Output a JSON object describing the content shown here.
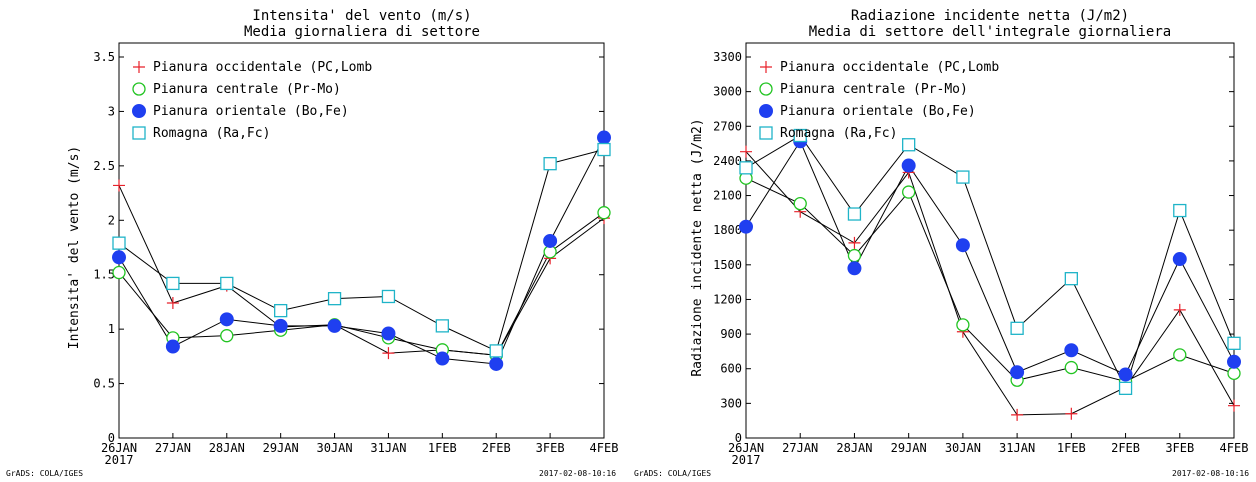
{
  "footer": {
    "left": "GrADS: COLA/IGES",
    "right": "2017-02-08-10:16"
  },
  "chart_data": [
    {
      "type": "line",
      "title": "Intensita' del vento (m/s)",
      "subtitle": "Media giornaliera di settore",
      "ylabel": "Intensita' del vento (m/s)",
      "xlabel": "",
      "categories": [
        "26JAN",
        "27JAN",
        "28JAN",
        "29JAN",
        "30JAN",
        "31JAN",
        "1FEB",
        "2FEB",
        "3FEB",
        "4FEB"
      ],
      "year_label": "2017",
      "ylim": [
        0,
        3.5
      ],
      "yticks": [
        0,
        0.5,
        1,
        1.5,
        2,
        2.5,
        3,
        3.5
      ],
      "ytick_labels": [
        "0",
        "0.5",
        "1",
        "1.5",
        "2",
        "2.5",
        "3",
        "3.5"
      ],
      "grid": false,
      "legend_position": "top-left",
      "series": [
        {
          "name": "Pianura occidentale (PC,Lomb",
          "marker": "plus",
          "color": "#e8212a",
          "values": [
            2.32,
            1.24,
            1.4,
            1.02,
            1.04,
            0.78,
            0.81,
            0.76,
            1.65,
            2.02
          ]
        },
        {
          "name": "Pianura centrale (Pr-Mo)",
          "marker": "circle-open",
          "color": "#22c422",
          "values": [
            1.52,
            0.92,
            0.94,
            0.99,
            1.04,
            0.92,
            0.81,
            0.76,
            1.71,
            2.07
          ]
        },
        {
          "name": "Pianura orientale (Bo,Fe)",
          "marker": "circle-filled",
          "color": "#1f3ff0",
          "values": [
            1.66,
            0.84,
            1.09,
            1.03,
            1.03,
            0.96,
            0.73,
            0.68,
            1.81,
            2.76
          ]
        },
        {
          "name": "Romagna (Ra,Fc)",
          "marker": "square-open",
          "color": "#1fb4c8",
          "values": [
            1.79,
            1.42,
            1.42,
            1.17,
            1.28,
            1.3,
            1.03,
            0.8,
            2.52,
            2.65
          ]
        }
      ]
    },
    {
      "type": "line",
      "title": "Radiazione incidente netta (J/m2)",
      "subtitle": "Media di settore dell'integrale giornaliera",
      "ylabel": "Radiazione incidente netta (J/m2)",
      "xlabel": "",
      "categories": [
        "26JAN",
        "27JAN",
        "28JAN",
        "29JAN",
        "30JAN",
        "31JAN",
        "1FEB",
        "2FEB",
        "3FEB",
        "4FEB"
      ],
      "year_label": "2017",
      "ylim": [
        0,
        3300
      ],
      "yticks": [
        0,
        300,
        600,
        900,
        1200,
        1500,
        1800,
        2100,
        2400,
        2700,
        3000,
        3300
      ],
      "ytick_labels": [
        "0",
        "300",
        "600",
        "900",
        "1200",
        "1500",
        "1800",
        "2100",
        "2400",
        "2700",
        "3000",
        "3300"
      ],
      "grid": false,
      "legend_position": "top-left",
      "series": [
        {
          "name": "Pianura occidentale (PC,Lomb",
          "marker": "plus",
          "color": "#e8212a",
          "values": [
            2480,
            1960,
            1690,
            2300,
            920,
            200,
            210,
            440,
            1110,
            280
          ]
        },
        {
          "name": "Pianura centrale (Pr-Mo)",
          "marker": "circle-open",
          "color": "#22c422",
          "values": [
            2250,
            2030,
            1580,
            2130,
            980,
            500,
            610,
            490,
            720,
            560
          ]
        },
        {
          "name": "Pianura orientale (Bo,Fe)",
          "marker": "circle-filled",
          "color": "#1f3ff0",
          "values": [
            1830,
            2570,
            1470,
            2360,
            1670,
            570,
            760,
            550,
            1550,
            660
          ]
        },
        {
          "name": "Romagna (Ra,Fc)",
          "marker": "square-open",
          "color": "#1fb4c8",
          "values": [
            2340,
            2620,
            1940,
            2540,
            2260,
            950,
            1380,
            430,
            1970,
            820
          ]
        }
      ]
    }
  ]
}
